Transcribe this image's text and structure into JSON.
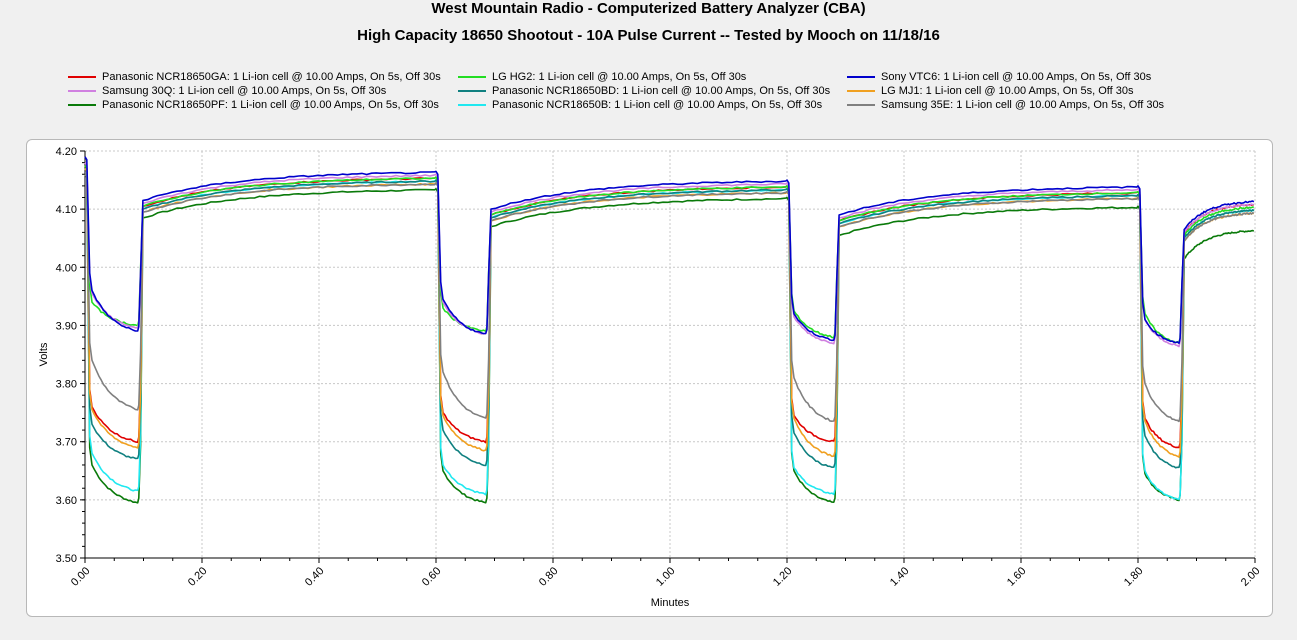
{
  "chart_data": {
    "type": "line",
    "title": "West Mountain Radio - Computerized Battery Analyzer (CBA)",
    "subtitle": "High Capacity 18650 Shootout - 10A Pulse Current -- Tested by Mooch on 11/18/16",
    "xlabel": "Minutes",
    "ylabel": "Volts",
    "xlim": [
      0,
      2.0
    ],
    "ylim": [
      3.5,
      4.2
    ],
    "xticks": [
      "0.00",
      "0.20",
      "0.40",
      "0.60",
      "0.80",
      "1.00",
      "1.20",
      "1.40",
      "1.60",
      "1.80",
      "2.00"
    ],
    "yticks": [
      "4.20",
      "4.10",
      "4.00",
      "3.90",
      "3.80",
      "3.70",
      "3.60",
      "3.50"
    ],
    "grid": true,
    "legend_position": "top",
    "pulses": [
      {
        "start": 0.0,
        "end": 0.095
      },
      {
        "start": 0.6,
        "end": 0.69
      },
      {
        "start": 1.2,
        "end": 1.285
      },
      {
        "start": 1.8,
        "end": 1.875
      }
    ],
    "series": [
      {
        "name": "Panasonic NCR18650GA: 1 Li-ion cell @ 10.00 Amps, On 5s, Off 30s",
        "color": "#e00000",
        "start": 4.175,
        "drop": [
          3.76,
          3.75,
          3.745,
          3.74
        ],
        "load_end": [
          3.7,
          3.7,
          3.7,
          3.69
        ],
        "rest_end": [
          4.155,
          4.14,
          4.13,
          4.11
        ]
      },
      {
        "name": "LG HG2: 1 Li-ion cell @ 10.00 Amps, On 5s, Off 30s",
        "color": "#22dd22",
        "start": 4.175,
        "drop": [
          3.94,
          3.93,
          3.925,
          3.92
        ],
        "load_end": [
          3.9,
          3.89,
          3.88,
          3.87
        ],
        "rest_end": [
          4.155,
          4.14,
          4.13,
          4.105
        ]
      },
      {
        "name": "Sony VTC6: 1 Li-ion cell @ 10.00 Amps, On 5s, Off 30s",
        "color": "#0000cc",
        "start": 4.19,
        "drop": [
          3.96,
          3.945,
          3.92,
          3.91
        ],
        "load_end": [
          3.89,
          3.885,
          3.875,
          3.87
        ],
        "rest_end": [
          4.165,
          4.15,
          4.14,
          4.115
        ]
      },
      {
        "name": "Samsung 30Q: 1 Li-ion cell @ 10.00 Amps, On 5s, Off 30s",
        "color": "#d080e0",
        "start": 4.18,
        "drop": [
          3.955,
          3.94,
          3.915,
          3.91
        ],
        "load_end": [
          3.895,
          3.885,
          3.87,
          3.865
        ],
        "rest_end": [
          4.16,
          4.145,
          4.135,
          4.11
        ]
      },
      {
        "name": "Panasonic NCR18650BD: 1 Li-ion cell @ 10.00 Amps, On 5s, Off 30s",
        "color": "#108080",
        "start": 4.17,
        "drop": [
          3.73,
          3.72,
          3.715,
          3.71
        ],
        "load_end": [
          3.67,
          3.66,
          3.655,
          3.655
        ],
        "rest_end": [
          4.15,
          4.135,
          4.125,
          4.1
        ]
      },
      {
        "name": "LG MJ1: 1 Li-ion cell @ 10.00 Amps, On 5s, Off 30s",
        "color": "#f0a020",
        "start": 4.17,
        "drop": [
          3.755,
          3.745,
          3.74,
          3.735
        ],
        "load_end": [
          3.69,
          3.685,
          3.675,
          3.675
        ],
        "rest_end": [
          4.145,
          4.13,
          4.12,
          4.095
        ]
      },
      {
        "name": "Panasonic NCR18650PF: 1 Li-ion cell @ 10.00 Amps, On 5s, Off 30s",
        "color": "#0a7a0a",
        "start": 4.16,
        "drop": [
          3.66,
          3.65,
          3.65,
          3.645
        ],
        "load_end": [
          3.595,
          3.595,
          3.595,
          3.6
        ],
        "rest_end": [
          4.135,
          4.12,
          4.105,
          4.065
        ]
      },
      {
        "name": "Panasonic NCR18650B: 1 Li-ion cell @ 10.00 Amps, On 5s, Off 30s",
        "color": "#20e8f0",
        "start": 4.17,
        "drop": [
          3.68,
          3.66,
          3.655,
          3.65
        ],
        "load_end": [
          3.615,
          3.61,
          3.61,
          3.6
        ],
        "rest_end": [
          4.15,
          4.135,
          4.125,
          4.1
        ]
      },
      {
        "name": "Samsung 35E: 1 Li-ion cell @ 10.00 Amps, On 5s, Off 30s",
        "color": "#808080",
        "start": 4.16,
        "drop": [
          3.84,
          3.82,
          3.81,
          3.8
        ],
        "load_end": [
          3.755,
          3.74,
          3.735,
          3.735
        ],
        "rest_end": [
          4.145,
          4.13,
          4.12,
          4.095
        ]
      }
    ]
  }
}
